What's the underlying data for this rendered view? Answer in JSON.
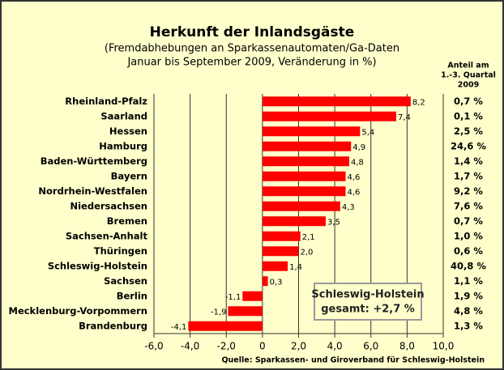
{
  "chart_data": {
    "type": "hbar",
    "title": "Herkunft der Inlandsgäste",
    "subtitle": [
      "(Fremdabhebungen an Sparkassenautomaten/Ga-Daten",
      "Januar bis September 2009, Veränderung in %)"
    ],
    "categories": [
      "Rheinland-Pfalz",
      "Saarland",
      "Hessen",
      "Hamburg",
      "Baden-Württemberg",
      "Bayern",
      "Nordrhein-Westfalen",
      "Niedersachsen",
      "Bremen",
      "Sachsen-Anhalt",
      "Thüringen",
      "Schleswig-Holstein",
      "Sachsen",
      "Berlin",
      "Mecklenburg-Vorpommern",
      "Brandenburg"
    ],
    "values": [
      8.2,
      7.4,
      5.4,
      4.9,
      4.8,
      4.6,
      4.6,
      4.3,
      3.5,
      2.1,
      2.0,
      1.4,
      0.3,
      -1.1,
      -1.9,
      -4.1
    ],
    "value_labels": [
      "8,2",
      "7,4",
      "5,4",
      "4,9",
      "4,8",
      "4,6",
      "4,6",
      "4,3",
      "3,5",
      "2,1",
      "2,0",
      "1,4",
      "0,3",
      "-1,1",
      "-1,9",
      "-4,1"
    ],
    "color": "#ff0000",
    "share_header": [
      "Anteil am",
      "1.-3. Quartal",
      "2009"
    ],
    "shares": [
      "0,7 %",
      "0,1 %",
      "2,5 %",
      "24,6 %",
      "1,4 %",
      "1,7 %",
      "9,2 %",
      "7,6 %",
      "0,7 %",
      "1,0 %",
      "0,6 %",
      "40,8 %",
      "1,1 %",
      "1,9 %",
      "4,8 %",
      "1,3 %"
    ],
    "xlim": [
      -6,
      10
    ],
    "xticks": [
      {
        "value": -6,
        "label": "-6,0"
      },
      {
        "value": -4,
        "label": "-4,0"
      },
      {
        "value": -2,
        "label": "-2,0"
      },
      {
        "value": 0,
        "label": "0"
      },
      {
        "value": 2,
        "label": "2,0"
      },
      {
        "value": 4,
        "label": "4,0"
      },
      {
        "value": 6,
        "label": "6,0"
      },
      {
        "value": 8,
        "label": "8,0"
      },
      {
        "value": 10,
        "label": "10,0"
      }
    ],
    "grid": true,
    "annotation": [
      "Schleswig-Holstein",
      "gesamt: +2,7 %"
    ],
    "source": "Quelle: Sparkassen- und Giroverband für Schleswig-Holstein"
  }
}
